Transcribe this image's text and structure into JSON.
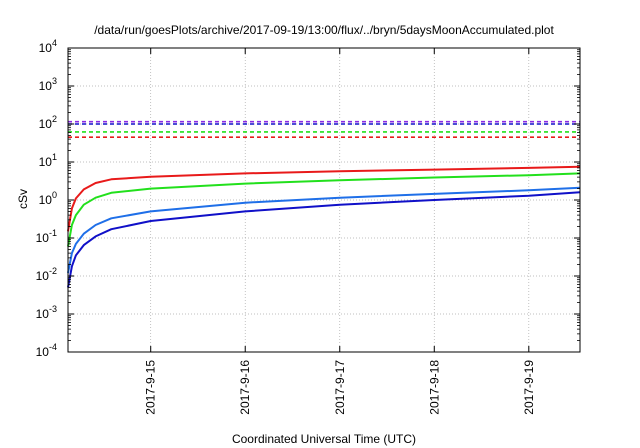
{
  "chart_data": {
    "type": "line",
    "title": "/data/run/goesPlots/archive/2017-09-19/13:00/flux/../bryn/5daysMoonAccumulated.plot",
    "xlabel": "Coordinated Universal Time (UTC)",
    "ylabel": "cSv",
    "x_type": "date",
    "x_range": [
      "2017-09-14 03:00",
      "2017-09-19 13:00"
    ],
    "x_ticks": [
      "2017-9-15",
      "2017-9-16",
      "2017-9-17",
      "2017-9-18",
      "2017-9-19"
    ],
    "y_scale": "log",
    "y_range": [
      0.0001,
      10000
    ],
    "y_ticks": [
      {
        "base": "10",
        "exp": "-4",
        "value": 0.0001
      },
      {
        "base": "10",
        "exp": "-3",
        "value": 0.001
      },
      {
        "base": "10",
        "exp": "-2",
        "value": 0.01
      },
      {
        "base": "10",
        "exp": "-1",
        "value": 0.1
      },
      {
        "base": "10",
        "exp": "0",
        "value": 1
      },
      {
        "base": "10",
        "exp": "1",
        "value": 10
      },
      {
        "base": "10",
        "exp": "2",
        "value": 100
      },
      {
        "base": "10",
        "exp": "3",
        "value": 1000
      },
      {
        "base": "10",
        "exp": "4",
        "value": 10000
      }
    ],
    "grid": true,
    "legend": "none",
    "series": [
      {
        "color": "#e81a1a",
        "style": "solid",
        "x": [
          "2017-09-14 03:00",
          "2017-09-14 04:00",
          "2017-09-14 05:00",
          "2017-09-14 07:00",
          "2017-09-14 10:00",
          "2017-09-14 14:00",
          "2017-09-15 00:00",
          "2017-09-16 00:00",
          "2017-09-17 00:00",
          "2017-09-18 00:00",
          "2017-09-19 00:00",
          "2017-09-19 13:00"
        ],
        "y": [
          0.15,
          0.6,
          1.1,
          1.9,
          2.8,
          3.5,
          4.1,
          5.0,
          5.7,
          6.3,
          7.0,
          7.5
        ]
      },
      {
        "color": "#22e01c",
        "style": "solid",
        "x": [
          "2017-09-14 03:00",
          "2017-09-14 04:00",
          "2017-09-14 05:00",
          "2017-09-14 07:00",
          "2017-09-14 10:00",
          "2017-09-14 14:00",
          "2017-09-15 00:00",
          "2017-09-16 00:00",
          "2017-09-17 00:00",
          "2017-09-18 00:00",
          "2017-09-19 00:00",
          "2017-09-19 13:00"
        ],
        "y": [
          0.06,
          0.22,
          0.4,
          0.75,
          1.15,
          1.55,
          2.0,
          2.7,
          3.3,
          3.9,
          4.5,
          5.0
        ]
      },
      {
        "color": "#1f6fe8",
        "style": "solid",
        "x": [
          "2017-09-14 03:00",
          "2017-09-14 04:00",
          "2017-09-14 05:00",
          "2017-09-14 07:00",
          "2017-09-14 10:00",
          "2017-09-14 14:00",
          "2017-09-15 00:00",
          "2017-09-16 00:00",
          "2017-09-17 00:00",
          "2017-09-18 00:00",
          "2017-09-19 00:00",
          "2017-09-19 13:00"
        ],
        "y": [
          0.012,
          0.04,
          0.07,
          0.13,
          0.22,
          0.33,
          0.5,
          0.85,
          1.15,
          1.45,
          1.8,
          2.1
        ]
      },
      {
        "color": "#1010c8",
        "style": "solid",
        "x": [
          "2017-09-14 03:00",
          "2017-09-14 04:00",
          "2017-09-14 05:00",
          "2017-09-14 07:00",
          "2017-09-14 10:00",
          "2017-09-14 14:00",
          "2017-09-15 00:00",
          "2017-09-16 00:00",
          "2017-09-17 00:00",
          "2017-09-18 00:00",
          "2017-09-19 00:00",
          "2017-09-19 13:00"
        ],
        "y": [
          0.005,
          0.018,
          0.035,
          0.065,
          0.11,
          0.17,
          0.28,
          0.5,
          0.75,
          1.0,
          1.3,
          1.6
        ]
      },
      {
        "color": "#e81a1a",
        "style": "dashed",
        "x": [
          "2017-09-14 03:00",
          "2017-09-19 13:00"
        ],
        "y": [
          45,
          45
        ]
      },
      {
        "color": "#22e01c",
        "style": "dashed",
        "x": [
          "2017-09-14 03:00",
          "2017-09-19 13:00"
        ],
        "y": [
          62,
          62
        ]
      },
      {
        "color": "#1010c8",
        "style": "dashed",
        "x": [
          "2017-09-14 03:00",
          "2017-09-19 13:00"
        ],
        "y": [
          100,
          100
        ]
      },
      {
        "color": "#8a2be2",
        "style": "dashed",
        "x": [
          "2017-09-14 03:00",
          "2017-09-19 13:00"
        ],
        "y": [
          115,
          115
        ]
      }
    ]
  }
}
